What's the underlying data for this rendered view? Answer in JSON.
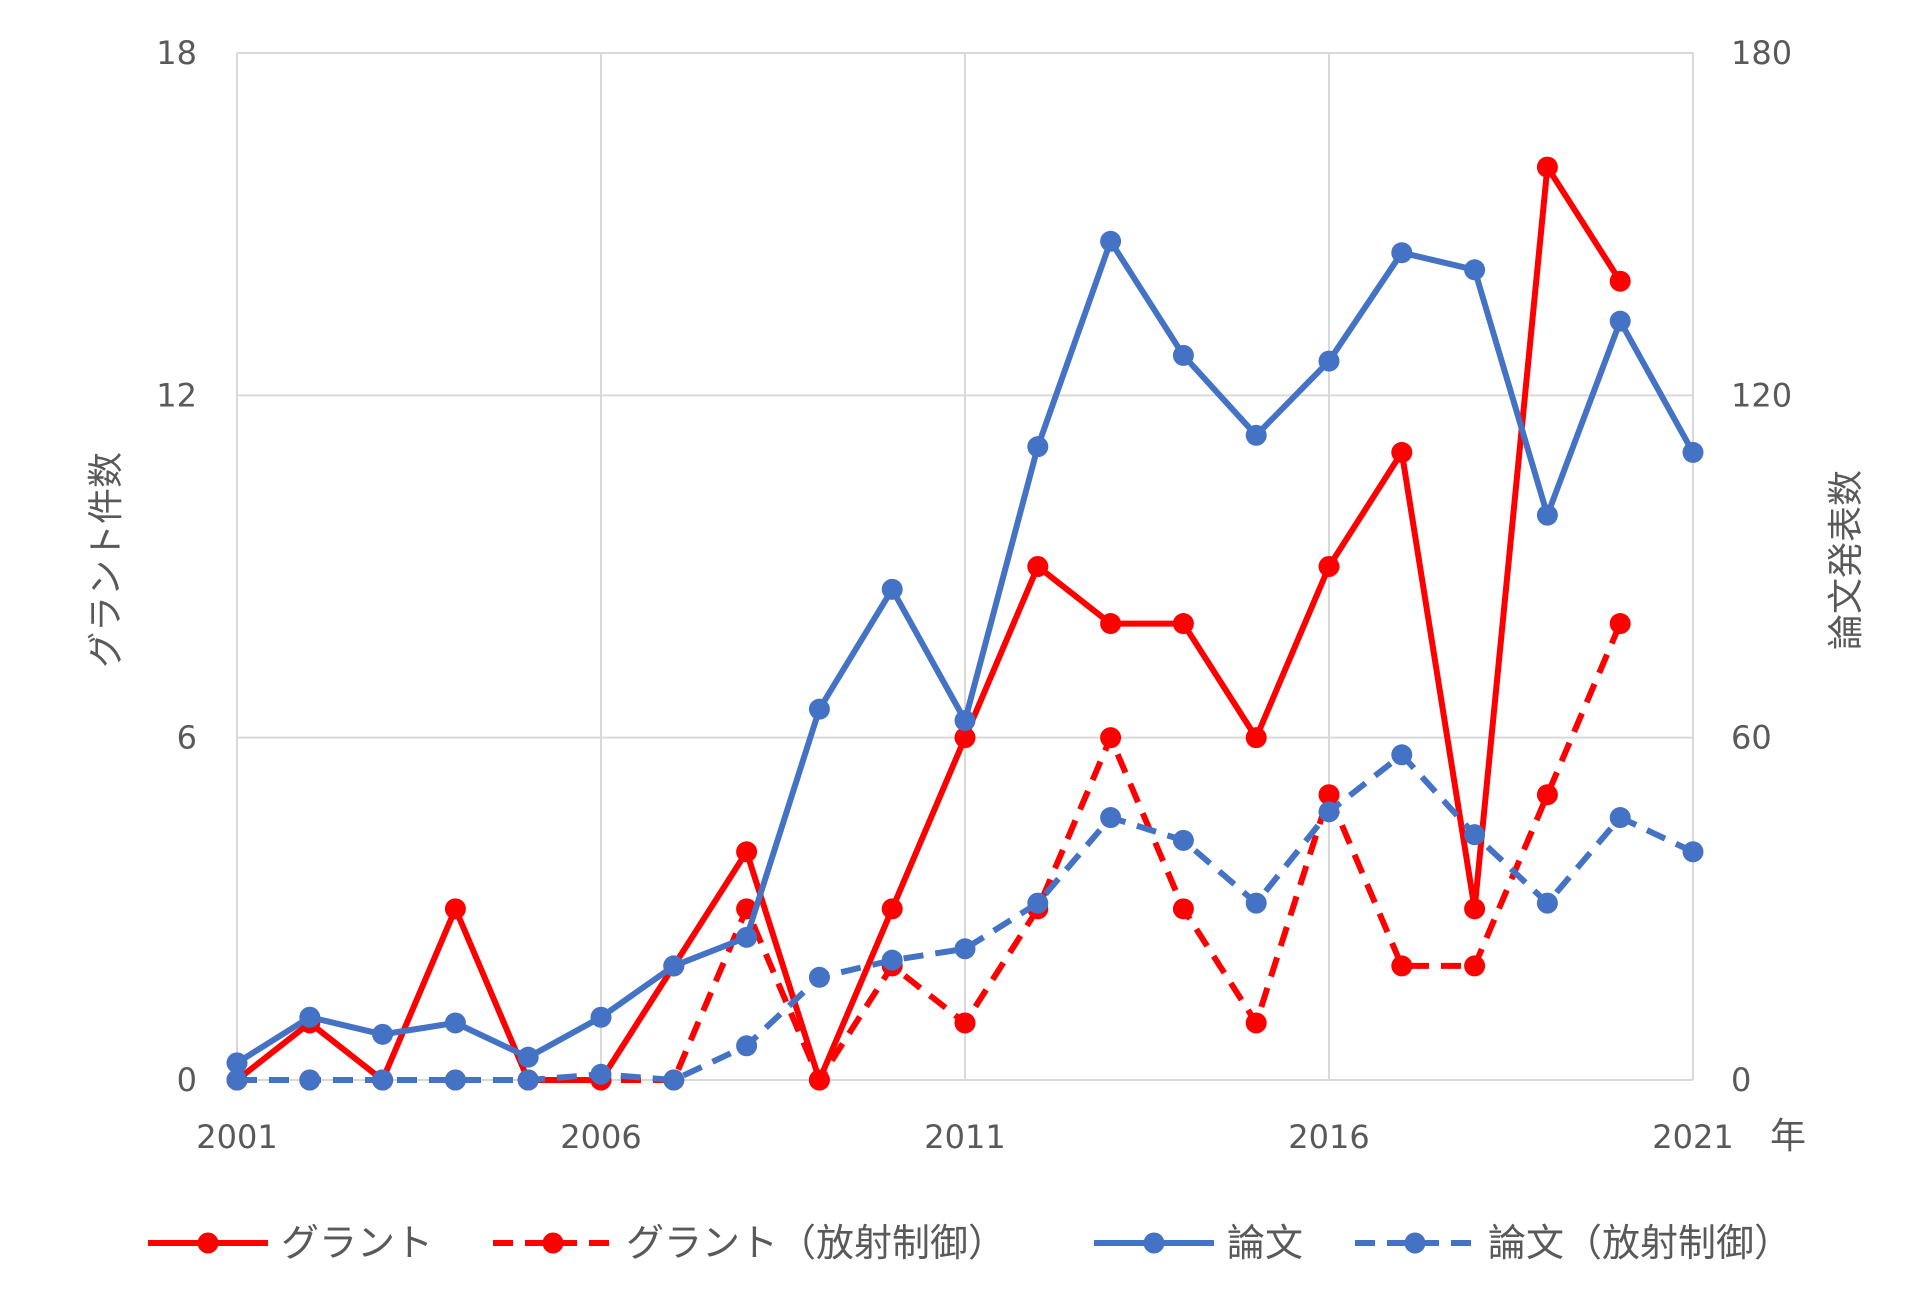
{
  "chart_data": {
    "type": "line",
    "x": [
      2001,
      2002,
      2003,
      2004,
      2005,
      2006,
      2007,
      2008,
      2009,
      2010,
      2011,
      2012,
      2013,
      2014,
      2015,
      2016,
      2017,
      2018,
      2019,
      2020,
      2021
    ],
    "x_ticks": [
      "2001",
      "2006",
      "2011",
      "2016",
      "2021"
    ],
    "x_unit": "年",
    "xlim": [
      2001,
      2021
    ],
    "y_left": {
      "label": "グラント件数",
      "lim": [
        0,
        18
      ],
      "ticks": [
        "0",
        "6",
        "12",
        "18"
      ]
    },
    "y_right": {
      "label": "論文発表数",
      "lim": [
        0,
        180
      ],
      "ticks": [
        "0",
        "60",
        "120",
        "180"
      ]
    },
    "grid": true,
    "legend_position": "bottom",
    "series": [
      {
        "name": "グラント",
        "axis": "left",
        "color": "#ff0000",
        "dash": "solid",
        "values": [
          0,
          1,
          0,
          3,
          0,
          0,
          2,
          4,
          0,
          3,
          6,
          9,
          8,
          8,
          6,
          9,
          11,
          3,
          16,
          14,
          null
        ]
      },
      {
        "name": "グラント（放射制御）",
        "axis": "left",
        "color": "#ff0000",
        "dash": "dashed",
        "values": [
          0,
          0,
          0,
          0,
          0,
          0,
          0,
          3,
          0,
          2,
          1,
          3,
          6,
          3,
          1,
          5,
          2,
          2,
          5,
          8,
          null
        ]
      },
      {
        "name": "論文",
        "axis": "right",
        "color": "#4472c4",
        "dash": "solid",
        "values": [
          3,
          11,
          8,
          10,
          4,
          11,
          20,
          25,
          65,
          86,
          63,
          111,
          147,
          127,
          113,
          126,
          145,
          142,
          99,
          133,
          110
        ]
      },
      {
        "name": "論文（放射制御）",
        "axis": "right",
        "color": "#4472c4",
        "dash": "dashed",
        "values": [
          0,
          0,
          0,
          0,
          0,
          1,
          0,
          6,
          18,
          21,
          23,
          31,
          46,
          42,
          31,
          47,
          57,
          43,
          31,
          46,
          40
        ]
      }
    ]
  }
}
